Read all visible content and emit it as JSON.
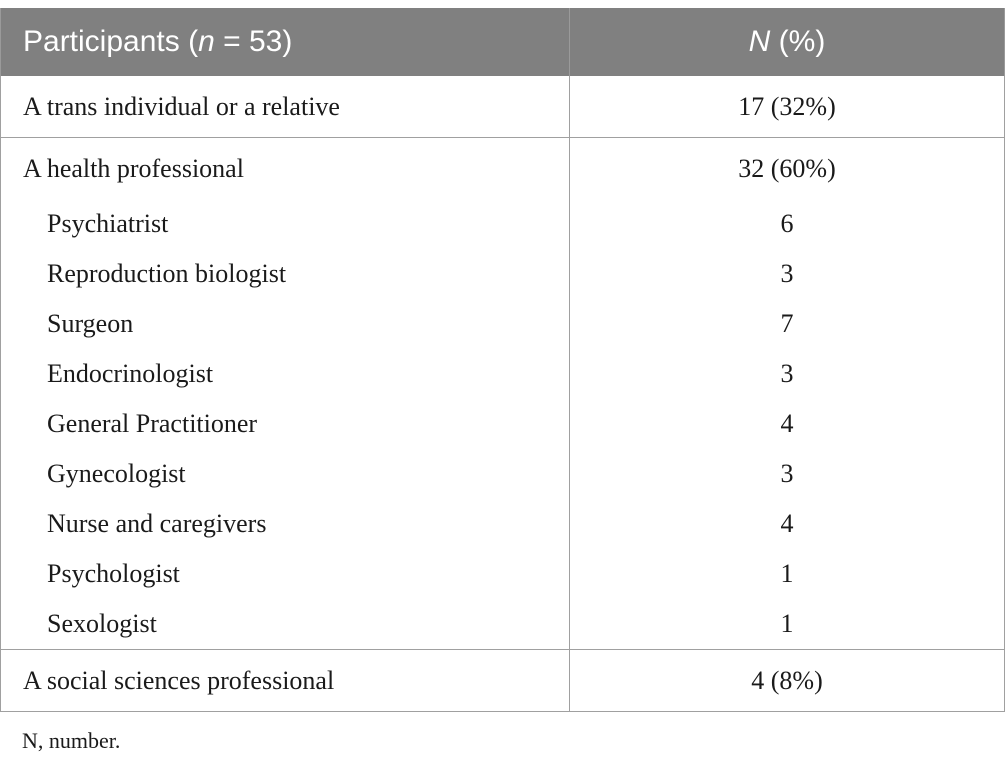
{
  "table": {
    "header": {
      "col1_prefix": "Participants (",
      "col1_var": "n",
      "col1_suffix": " = 53)",
      "col2_var": "N",
      "col2_suffix": " (%)"
    },
    "rows": [
      {
        "label": "A trans individual or a relative",
        "value": "17 (32%)"
      },
      {
        "label": "A health professional",
        "value": "32 (60%)"
      },
      {
        "label": "Psychiatrist",
        "value": "6"
      },
      {
        "label": "Reproduction biologist",
        "value": "3"
      },
      {
        "label": "Surgeon",
        "value": "7"
      },
      {
        "label": "Endocrinologist",
        "value": "3"
      },
      {
        "label": "General Practitioner",
        "value": "4"
      },
      {
        "label": "Gynecologist",
        "value": "3"
      },
      {
        "label": "Nurse and caregivers",
        "value": "4"
      },
      {
        "label": "Psychologist",
        "value": "1"
      },
      {
        "label": "Sexologist",
        "value": "1"
      },
      {
        "label": "A social sciences professional",
        "value": "4 (8%)"
      }
    ]
  },
  "footnote": "N, number."
}
